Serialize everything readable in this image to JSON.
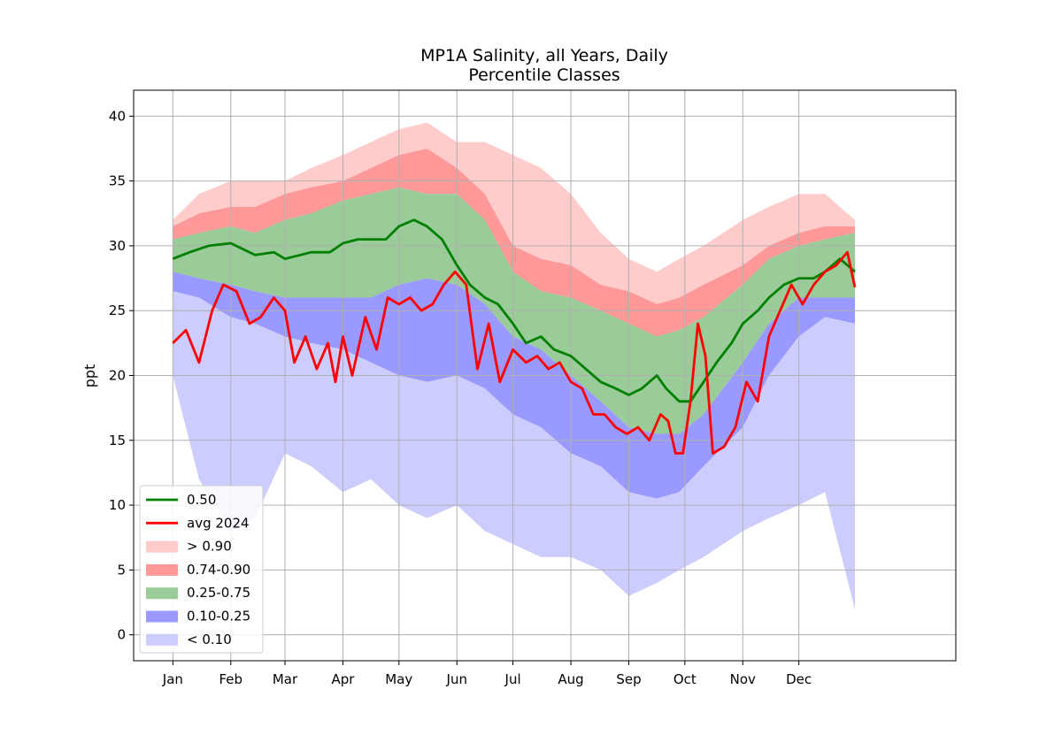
{
  "chart_data": {
    "type": "area",
    "title": "MP1A Salinity, all Years, Daily",
    "subtitle": "Percentile Classes",
    "xlabel": "",
    "ylabel": "ppt",
    "ylim": [
      -2,
      42
    ],
    "yticks": [
      0,
      5,
      10,
      15,
      20,
      25,
      30,
      35,
      40
    ],
    "xlim": [
      -20,
      420
    ],
    "xticks": [
      1,
      32,
      61,
      92,
      122,
      153,
      183,
      214,
      245,
      275,
      306,
      336
    ],
    "xticklabels": [
      "Jan",
      "Feb",
      "Mar",
      "Apr",
      "May",
      "Jun",
      "Jul",
      "Aug",
      "Sep",
      "Oct",
      "Nov",
      "Dec"
    ],
    "grid": true,
    "legend_position": "lower-left",
    "x": [
      1,
      15,
      32,
      45,
      61,
      75,
      92,
      107,
      122,
      137,
      153,
      168,
      183,
      198,
      214,
      230,
      245,
      260,
      272,
      285,
      306,
      320,
      336,
      350,
      366
    ],
    "bands": {
      "min": [
        20,
        12,
        8,
        9,
        14,
        13,
        11,
        12,
        10,
        9,
        10,
        8,
        7,
        6,
        6,
        5,
        3,
        4,
        5,
        6,
        8,
        9,
        10,
        11,
        2
      ],
      "p10": [
        26.5,
        26,
        24.5,
        24,
        23,
        22.5,
        22,
        21,
        20,
        19.5,
        20,
        19,
        17,
        16,
        14,
        13,
        11,
        10.5,
        11,
        13,
        16,
        20,
        23,
        24.5,
        24
      ],
      "p25": [
        28,
        27.5,
        27,
        26.5,
        26,
        26,
        26,
        26,
        27,
        27.5,
        27,
        25.5,
        23,
        22,
        20,
        18,
        16,
        15.5,
        15.5,
        17,
        21,
        24,
        26,
        26,
        26
      ],
      "p75": [
        30.5,
        31,
        31.5,
        31,
        32,
        32.5,
        33.5,
        34,
        34.5,
        34,
        34,
        32,
        28,
        26.5,
        26,
        25,
        24,
        23,
        23.5,
        24.5,
        27,
        29,
        30,
        30.5,
        31
      ],
      "p90": [
        31.5,
        32.5,
        33,
        33,
        34,
        34.5,
        35,
        36,
        37,
        37.5,
        36,
        34,
        30,
        29,
        28.5,
        27,
        26.5,
        25.5,
        26,
        27,
        28.5,
        30,
        31,
        31.5,
        31.5
      ],
      "max": [
        32,
        34,
        35,
        35,
        35,
        36,
        37,
        38,
        39,
        39.5,
        38,
        38,
        37,
        36,
        34,
        31,
        29,
        28,
        29,
        30,
        32,
        33,
        34,
        34,
        32
      ]
    },
    "series": [
      {
        "name": "0.50",
        "color": "#008000",
        "x": [
          1,
          10,
          20,
          32,
          45,
          55,
          61,
          75,
          85,
          92,
          100,
          107,
          115,
          122,
          130,
          137,
          145,
          153,
          160,
          168,
          175,
          183,
          190,
          198,
          205,
          214,
          222,
          230,
          238,
          245,
          252,
          260,
          265,
          272,
          278,
          285,
          292,
          300,
          306,
          314,
          320,
          328,
          336,
          344,
          350,
          358,
          366
        ],
        "y": [
          29,
          29.5,
          30,
          30.2,
          29.3,
          29.5,
          29,
          29.5,
          29.5,
          30.2,
          30.5,
          30.5,
          30.5,
          31.5,
          32,
          31.5,
          30.5,
          28.5,
          27,
          26,
          25.5,
          24,
          22.5,
          23,
          22,
          21.5,
          20.5,
          19.5,
          19,
          18.5,
          19,
          20,
          19,
          18,
          18,
          19.5,
          21,
          22.5,
          24,
          25,
          26,
          27,
          27.5,
          27.5,
          28,
          29,
          28
        ]
      },
      {
        "name": "avg 2024",
        "color": "#ff0000",
        "x": [
          1,
          8,
          15,
          22,
          28,
          35,
          42,
          48,
          55,
          61,
          66,
          72,
          78,
          84,
          88,
          92,
          97,
          104,
          110,
          116,
          122,
          128,
          134,
          140,
          146,
          152,
          158,
          164,
          170,
          176,
          183,
          190,
          196,
          202,
          208,
          214,
          220,
          226,
          232,
          238,
          244,
          250,
          256,
          262,
          266,
          270,
          274,
          278,
          282,
          286,
          290,
          296,
          302,
          308,
          314,
          320,
          326,
          332,
          338,
          344,
          350,
          356,
          362,
          366
        ],
        "y": [
          22.5,
          23.5,
          21,
          25,
          27,
          26.5,
          24,
          24.5,
          26,
          25,
          21,
          23,
          20.5,
          22.5,
          19.5,
          23,
          20,
          24.5,
          22,
          26,
          25.5,
          26,
          25,
          25.5,
          27,
          28,
          27,
          20.5,
          24,
          19.5,
          22,
          21,
          21.5,
          20.5,
          21,
          19.5,
          19,
          17,
          17,
          16,
          15.5,
          16,
          15,
          17,
          16.5,
          14,
          14,
          18,
          24,
          21.5,
          14,
          14.5,
          16,
          19.5,
          18,
          23,
          25,
          27,
          25.5,
          27,
          28,
          28.5,
          29.5,
          26.8
        ]
      }
    ],
    "legend": [
      {
        "label": "0.50",
        "kind": "line",
        "color": "#008000"
      },
      {
        "label": "avg 2024",
        "kind": "line",
        "color": "#ff0000"
      },
      {
        "label": "> 0.90",
        "kind": "patch",
        "color": "#ffcccc"
      },
      {
        "label": "0.74-0.90",
        "kind": "patch",
        "color": "#ff9999"
      },
      {
        "label": "0.25-0.75",
        "kind": "patch",
        "color": "#99cc99"
      },
      {
        "label": "0.10-0.25",
        "kind": "patch",
        "color": "#9999ff"
      },
      {
        "label": "< 0.10",
        "kind": "patch",
        "color": "#ccccff"
      }
    ]
  }
}
